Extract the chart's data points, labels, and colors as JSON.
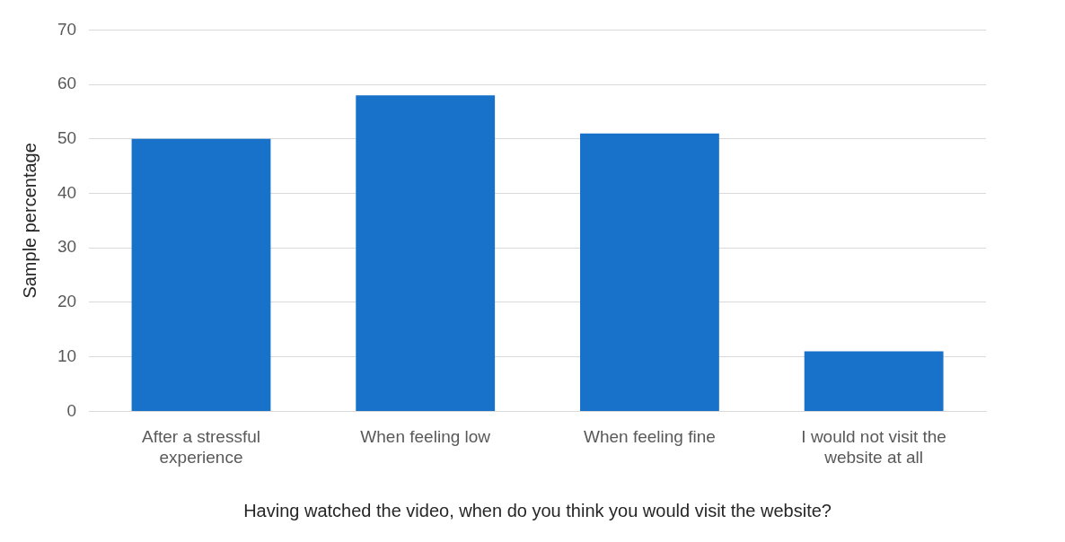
{
  "chart_data": {
    "type": "bar",
    "xlabel": "Having watched the video, when do you think you would visit the website?",
    "ylabel": "Sample percentage",
    "categories": [
      "After a stressful experience",
      "When feeling low",
      "When feeling fine",
      "I would not visit the website at all"
    ],
    "values": [
      50,
      58,
      51,
      11
    ],
    "color": "#1872c9",
    "ylim": [
      0,
      70
    ],
    "yticks": [
      0,
      10,
      20,
      30,
      40,
      50,
      60,
      70
    ],
    "grid": "y",
    "legend": false
  }
}
